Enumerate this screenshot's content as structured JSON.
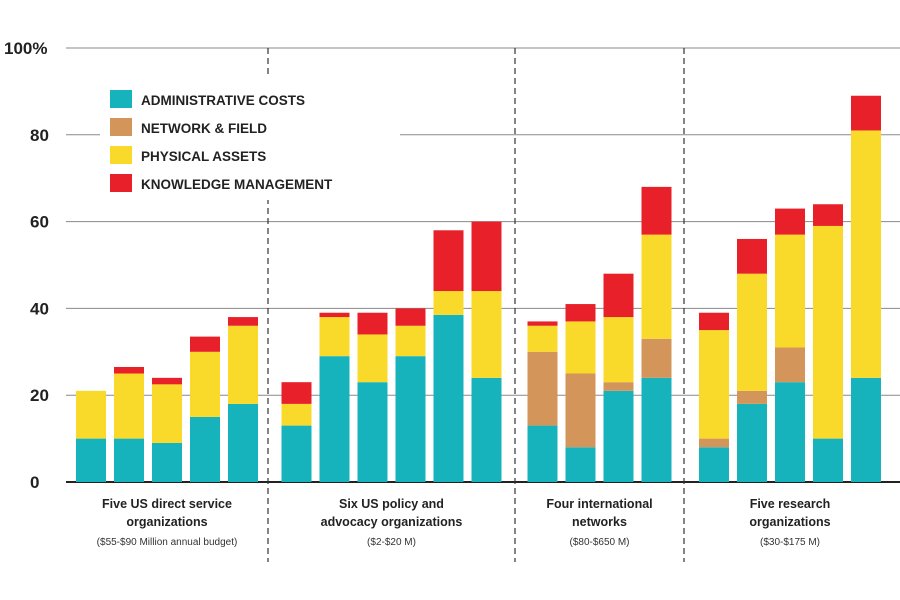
{
  "chart_data": {
    "type": "bar",
    "stacked": true,
    "y_unit_label": "100%",
    "yticks": [
      "0",
      "20",
      "40",
      "60",
      "80",
      "100%"
    ],
    "ylim": [
      0,
      100
    ],
    "grid": true,
    "legend_position": "top-left",
    "series": [
      {
        "name": "ADMINISTRATIVE COSTS",
        "color": "#17b3bd"
      },
      {
        "name": "NETWORK & FIELD",
        "color": "#d4955a"
      },
      {
        "name": "PHYSICAL ASSETS",
        "color": "#f9da2a"
      },
      {
        "name": "KNOWLEDGE MANAGEMENT",
        "color": "#e8202a"
      }
    ],
    "groups": [
      {
        "lines": [
          "Five US direct service",
          "organizations"
        ],
        "sub": "($55-$90 Million annual budget)",
        "bars": [
          [
            10,
            0,
            11,
            0
          ],
          [
            10,
            0,
            15,
            1.5
          ],
          [
            9,
            0,
            13.5,
            1.5
          ],
          [
            15,
            0,
            15,
            3.5
          ],
          [
            18,
            0,
            18,
            2
          ]
        ]
      },
      {
        "lines": [
          "Six US policy and",
          "advocacy organizations"
        ],
        "sub": "($2-$20 M)",
        "bars": [
          [
            13,
            0,
            5,
            5
          ],
          [
            29,
            0,
            9,
            1
          ],
          [
            23,
            0,
            11,
            5
          ],
          [
            29,
            0,
            7,
            4
          ],
          [
            38.5,
            0,
            5.5,
            14
          ],
          [
            24,
            0,
            20,
            16
          ]
        ]
      },
      {
        "lines": [
          "Four international",
          "networks"
        ],
        "sub": "($80-$650 M)",
        "bars": [
          [
            13,
            17,
            6,
            1
          ],
          [
            8,
            17,
            12,
            4
          ],
          [
            21,
            2,
            15,
            10
          ],
          [
            24,
            9,
            24,
            11
          ]
        ]
      },
      {
        "lines": [
          "Five research",
          "organizations"
        ],
        "sub": "($30-$175 M)",
        "bars": [
          [
            8,
            2,
            25,
            4
          ],
          [
            18,
            3,
            27,
            8
          ],
          [
            23,
            8,
            26,
            6
          ],
          [
            10,
            0,
            49,
            5
          ],
          [
            24,
            0,
            57,
            8
          ]
        ]
      }
    ]
  }
}
